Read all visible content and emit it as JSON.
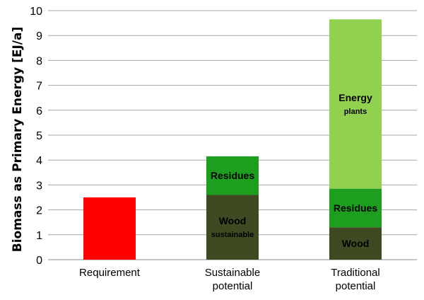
{
  "chart_data": {
    "type": "bar",
    "stacked": true,
    "title": "",
    "xlabel": "",
    "ylabel": "Biomass as Primary Energy [EJ/a]",
    "ylim": [
      0,
      10
    ],
    "yticks": [
      0,
      1,
      2,
      3,
      4,
      5,
      6,
      7,
      8,
      9,
      10
    ],
    "grid": true,
    "legend": "none",
    "categories": [
      [
        "Requirement"
      ],
      [
        "Sustainable",
        "potential"
      ],
      [
        "Traditional",
        "potential"
      ]
    ],
    "bars": [
      {
        "segments": [
          {
            "value": 2.5,
            "color": "#ff0000",
            "label": []
          }
        ]
      },
      {
        "segments": [
          {
            "value": 2.6,
            "color": "#3f4a22",
            "label": [
              "Wood",
              "sustainable"
            ]
          },
          {
            "value": 1.55,
            "color": "#1e9e1e",
            "label": [
              "Residues"
            ]
          }
        ]
      },
      {
        "segments": [
          {
            "value": 1.3,
            "color": "#3f4a22",
            "label": [
              "Wood"
            ]
          },
          {
            "value": 1.55,
            "color": "#1e9e1e",
            "label": [
              "Residues"
            ]
          },
          {
            "value": 6.8,
            "color": "#92d050",
            "label": [
              "Energy",
              "plants"
            ]
          }
        ]
      }
    ]
  }
}
